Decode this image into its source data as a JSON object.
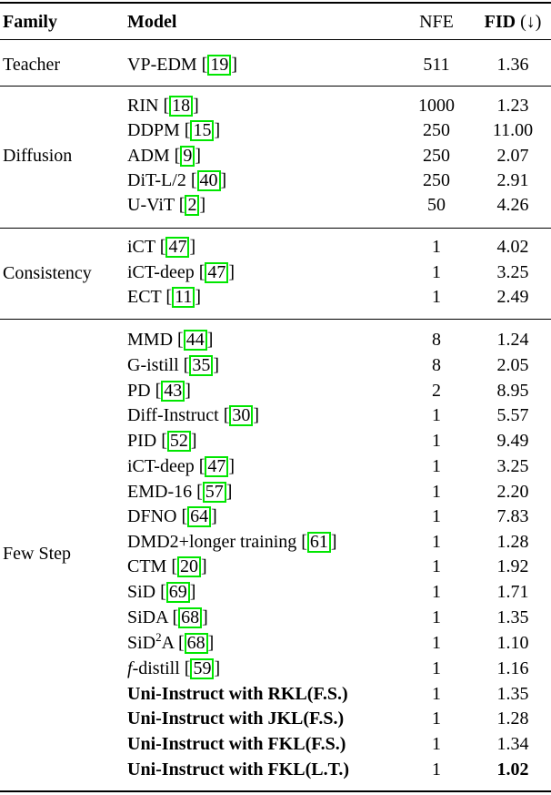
{
  "headers": {
    "family": "Family",
    "model": "Model",
    "nfe": "NFE",
    "fid": "FID",
    "fid_arrow": " (↓)"
  },
  "families": [
    "Teacher",
    "Diffusion",
    "Consistency",
    "Few Step"
  ],
  "rows": [
    {
      "name": "VP-EDM",
      "cite": "19",
      "nfe": "511",
      "fid": "1.36"
    },
    {
      "name": "RIN",
      "cite": "18",
      "nfe": "1000",
      "fid": "1.23"
    },
    {
      "name": "DDPM",
      "cite": "15",
      "nfe": "250",
      "fid": "11.00"
    },
    {
      "name": "ADM",
      "cite": "9",
      "nfe": "250",
      "fid": "2.07"
    },
    {
      "name": "DiT-L/2",
      "cite": "40",
      "nfe": "250",
      "fid": "2.91"
    },
    {
      "name": "U-ViT",
      "cite": "2",
      "nfe": "50",
      "fid": "4.26"
    },
    {
      "name": "iCT",
      "cite": "47",
      "nfe": "1",
      "fid": "4.02"
    },
    {
      "name": "iCT-deep",
      "cite": "47",
      "nfe": "1",
      "fid": "3.25"
    },
    {
      "name": "ECT",
      "cite": "11",
      "nfe": "1",
      "fid": "2.49"
    },
    {
      "name": "MMD",
      "cite": "44",
      "nfe": "8",
      "fid": "1.24"
    },
    {
      "name": "G-istill",
      "cite": "35",
      "nfe": "8",
      "fid": "2.05"
    },
    {
      "name": "PD",
      "cite": "43",
      "nfe": "2",
      "fid": "8.95"
    },
    {
      "name": "Diff-Instruct",
      "cite": "30",
      "nfe": "1",
      "fid": "5.57"
    },
    {
      "name": "PID",
      "cite": "52",
      "nfe": "1",
      "fid": "9.49"
    },
    {
      "name": "iCT-deep",
      "cite": "47",
      "nfe": "1",
      "fid": "3.25"
    },
    {
      "name": "EMD-16",
      "cite": "57",
      "nfe": "1",
      "fid": "2.20"
    },
    {
      "name": "DFNO",
      "cite": "64",
      "nfe": "1",
      "fid": "7.83"
    },
    {
      "name": "DMD2+longer training",
      "cite": "61",
      "nfe": "1",
      "fid": "1.28"
    },
    {
      "name": "CTM",
      "cite": "20",
      "nfe": "1",
      "fid": "1.92"
    },
    {
      "name": "SiD",
      "cite": "69",
      "nfe": "1",
      "fid": "1.71"
    },
    {
      "name": "SiDA",
      "cite": "68",
      "nfe": "1",
      "fid": "1.35"
    },
    {
      "name_pre": "SiD",
      "name_sup": "2",
      "name_post": "A",
      "cite": "68",
      "nfe": "1",
      "fid": "1.10"
    },
    {
      "name": "f-distill",
      "cite": "59",
      "nfe": "1",
      "fid": "1.16"
    },
    {
      "name": "Uni-Instruct with RKL(F.S.)",
      "nfe": "1",
      "fid": "1.35"
    },
    {
      "name": "Uni-Instruct with JKL(F.S.)",
      "nfe": "1",
      "fid": "1.28"
    },
    {
      "name": "Uni-Instruct with FKL(F.S.)",
      "nfe": "1",
      "fid": "1.34"
    },
    {
      "name": "Uni-Instruct with FKL(L.T.)",
      "nfe": "1",
      "fid": "1.02"
    }
  ],
  "colors": {
    "rule": "#000000",
    "citation_box": "#00e600"
  }
}
